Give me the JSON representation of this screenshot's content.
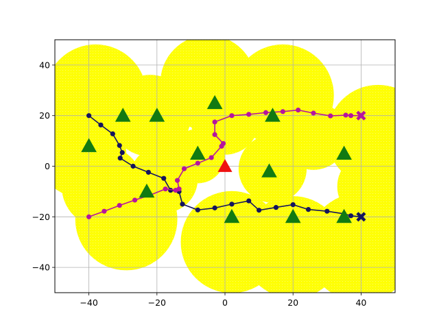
{
  "chart_data": {
    "type": "scatter",
    "title": "",
    "xlabel": "",
    "ylabel": "",
    "xlim": [
      -50,
      50
    ],
    "ylim": [
      -50,
      50
    ],
    "xticks": [
      -40,
      -20,
      0,
      20,
      40
    ],
    "yticks": [
      -40,
      -20,
      0,
      20,
      40
    ],
    "xtick_labels": [
      "−40",
      "−20",
      "0",
      "20",
      "40"
    ],
    "ytick_labels": [
      "−40",
      "−20",
      "0",
      "20",
      "40"
    ],
    "grid": true,
    "colors": {
      "coverage": "#ffff00",
      "obstacle": "#127a12",
      "target": "#ee1111",
      "path_navy": "#14145e",
      "path_magenta": "#b5169f",
      "grid": "#b0b0b0"
    },
    "coverage_areas": [
      {
        "x": -38,
        "y": 28,
        "r": 15
      },
      {
        "x": -22,
        "y": 20,
        "r": 12
      },
      {
        "x": -42,
        "y": 5,
        "r": 13
      },
      {
        "x": -36,
        "y": -8,
        "r": 12
      },
      {
        "x": -29,
        "y": -21,
        "r": 15
      },
      {
        "x": -18,
        "y": -5,
        "r": 10
      },
      {
        "x": -5,
        "y": 33,
        "r": 14
      },
      {
        "x": 0,
        "y": 18,
        "r": 10
      },
      {
        "x": 17,
        "y": 28,
        "r": 15
      },
      {
        "x": 26,
        "y": 12,
        "r": 10
      },
      {
        "x": 45,
        "y": 12,
        "r": 15
      },
      {
        "x": 43,
        "y": -8,
        "r": 10
      },
      {
        "x": 14,
        "y": -1,
        "r": 10
      },
      {
        "x": 2,
        "y": -30,
        "r": 15
      },
      {
        "x": 20,
        "y": -32,
        "r": 15
      },
      {
        "x": 40,
        "y": -32,
        "r": 16
      },
      {
        "x": -8,
        "y": 4,
        "r": 8
      }
    ],
    "obstacles": [
      [
        -40,
        8
      ],
      [
        -30,
        20
      ],
      [
        -20,
        20
      ],
      [
        -3,
        25
      ],
      [
        -8,
        5
      ],
      [
        14,
        20
      ],
      [
        13,
        -2
      ],
      [
        35,
        5
      ],
      [
        -23,
        -10
      ],
      [
        2,
        -20
      ],
      [
        20,
        -20
      ],
      [
        35,
        -20
      ]
    ],
    "target": [
      0,
      0
    ],
    "series": [
      {
        "points": [
          [
            -40,
            20
          ],
          [
            -36.5,
            16.3
          ],
          [
            -33,
            12.8
          ],
          [
            -31,
            8.2
          ],
          [
            -30.2,
            5.4
          ],
          [
            -30.8,
            3.2
          ],
          [
            -27,
            0
          ],
          [
            -22.5,
            -2.4
          ],
          [
            -18,
            -4.8
          ],
          [
            -16,
            -9.5
          ],
          [
            -13.5,
            -10
          ],
          [
            -12.5,
            -15
          ],
          [
            -8,
            -17.3
          ],
          [
            -3,
            -16.5
          ],
          [
            2,
            -15
          ],
          [
            7,
            -13.7
          ],
          [
            10,
            -17.4
          ],
          [
            15,
            -16.3
          ],
          [
            20,
            -15.2
          ],
          [
            24.5,
            -17.1
          ],
          [
            30,
            -17.8
          ],
          [
            35,
            -18.8
          ],
          [
            37,
            -19.6
          ],
          [
            40,
            -20
          ]
        ],
        "start": [
          -40,
          20
        ],
        "end": [
          40,
          -20
        ],
        "color_key": "path_navy"
      },
      {
        "points": [
          [
            -40,
            -20
          ],
          [
            -35.5,
            -17.8
          ],
          [
            -31,
            -15.5
          ],
          [
            -26.5,
            -13.4
          ],
          [
            -22,
            -11.4
          ],
          [
            -17.5,
            -9
          ],
          [
            -14.5,
            -9.5
          ],
          [
            -13.5,
            -9
          ],
          [
            -14,
            -5.6
          ],
          [
            -12,
            -1
          ],
          [
            -8,
            1.2
          ],
          [
            -4,
            3.4
          ],
          [
            -1,
            7.9
          ],
          [
            -0.5,
            9
          ],
          [
            -3,
            12.5
          ],
          [
            -3,
            17.5
          ],
          [
            2,
            20
          ],
          [
            7,
            20.5
          ],
          [
            12,
            21.2
          ],
          [
            17,
            21.6
          ],
          [
            21.5,
            22.2
          ],
          [
            26,
            21
          ],
          [
            31,
            19.9
          ],
          [
            35.5,
            20.2
          ],
          [
            37,
            20
          ],
          [
            40,
            20
          ]
        ],
        "start": [
          -40,
          -20
        ],
        "end": [
          40,
          20
        ],
        "color_key": "path_magenta"
      }
    ]
  }
}
